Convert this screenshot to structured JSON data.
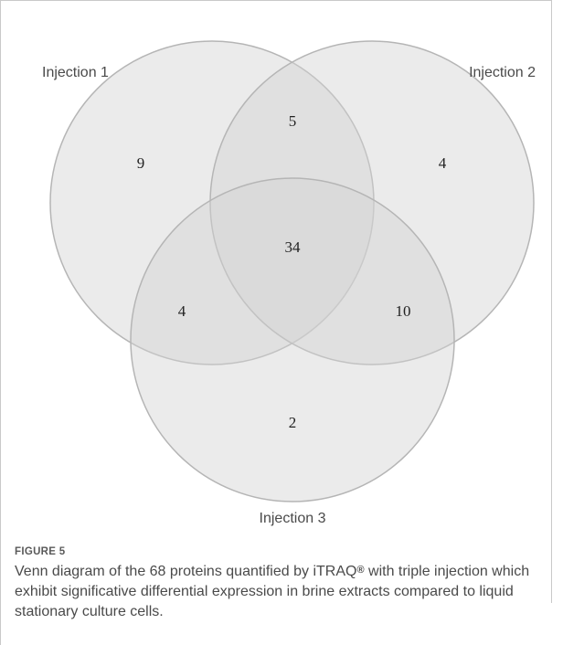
{
  "diagram": {
    "sets": [
      {
        "id": "injection-1",
        "label": "Injection 1"
      },
      {
        "id": "injection-2",
        "label": "Injection 2"
      },
      {
        "id": "injection-3",
        "label": "Injection 3"
      }
    ],
    "regions": {
      "only_1": "9",
      "only_2": "4",
      "only_3": "2",
      "one_and_two": "5",
      "one_and_three": "4",
      "two_and_three": "10",
      "all_three": "34"
    },
    "colors": {
      "circle_fill": "#d3d3d3",
      "circle_stroke": "#b5b5b5"
    }
  },
  "caption": {
    "label": "FIGURE 5",
    "text_before": "Venn diagram of the 68 proteins quantified by iTRAQ",
    "registered_mark": "®",
    "text_after": " with triple injection which exhibit significative differential expression in brine extracts compared to liquid stationary culture cells."
  }
}
